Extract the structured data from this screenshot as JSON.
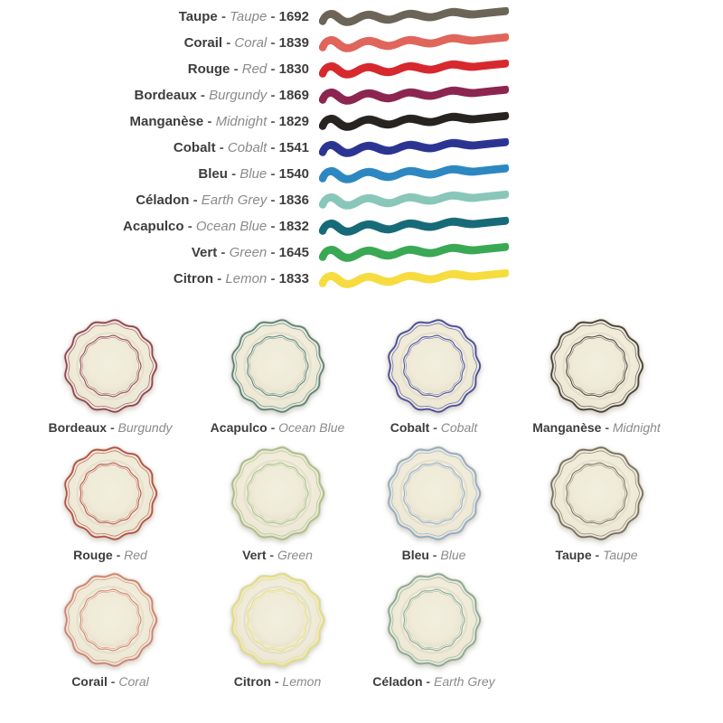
{
  "page": {
    "background": "#ffffff"
  },
  "separator": " - ",
  "text_colors": {
    "primary": "#3d3d3d",
    "secondary": "#8a8a8a"
  },
  "colors": [
    {
      "id": "taupe",
      "fr": "Taupe",
      "en": "Taupe",
      "code": "1692",
      "swatch_hex": "#6b6458",
      "plate_hex": "#6f685c"
    },
    {
      "id": "corail",
      "fr": "Corail",
      "en": "Coral",
      "code": "1839",
      "swatch_hex": "#e0655a",
      "plate_hex": "#cf7a6d"
    },
    {
      "id": "rouge",
      "fr": "Rouge",
      "en": "Red",
      "code": "1830",
      "swatch_hex": "#d7282e",
      "plate_hex": "#b2473f"
    },
    {
      "id": "bordeaux",
      "fr": "Bordeaux",
      "en": "Burgundy",
      "code": "1869",
      "swatch_hex": "#8c2650",
      "plate_hex": "#8d3a50"
    },
    {
      "id": "manganese",
      "fr": "Manganèse",
      "en": "Midnight",
      "code": "1829",
      "swatch_hex": "#272321",
      "plate_hex": "#3c3833"
    },
    {
      "id": "cobalt",
      "fr": "Cobalt",
      "en": "Cobalt",
      "code": "1541",
      "swatch_hex": "#2c3493",
      "plate_hex": "#3d43a0"
    },
    {
      "id": "bleu",
      "fr": "Bleu",
      "en": "Blue",
      "code": "1540",
      "swatch_hex": "#2d87c1",
      "plate_hex": "#8aa6c9"
    },
    {
      "id": "celadon",
      "fr": "Céladon",
      "en": "Earth Grey",
      "code": "1836",
      "swatch_hex": "#89c6b9",
      "plate_hex": "#7fa695"
    },
    {
      "id": "acapulco",
      "fr": "Acapulco",
      "en": "Ocean Blue",
      "code": "1832",
      "swatch_hex": "#176a77",
      "plate_hex": "#4f7e78"
    },
    {
      "id": "vert",
      "fr": "Vert",
      "en": "Green",
      "code": "1645",
      "swatch_hex": "#3aa854",
      "plate_hex": "#a3bd86"
    },
    {
      "id": "citron",
      "fr": "Citron",
      "en": "Lemon",
      "code": "1833",
      "swatch_hex": "#f6dc3e",
      "plate_hex": "#e3dd76"
    }
  ],
  "plate_grid": {
    "rows": [
      [
        "bordeaux",
        "acapulco",
        "cobalt",
        "manganese"
      ],
      [
        "rouge",
        "vert",
        "bleu",
        "taupe"
      ],
      [
        "corail",
        "citron",
        "celadon"
      ]
    ]
  },
  "plate_body_colors": {
    "body": "#f1edda",
    "body_edge": "#e4dfca",
    "well": "#efebd8"
  }
}
